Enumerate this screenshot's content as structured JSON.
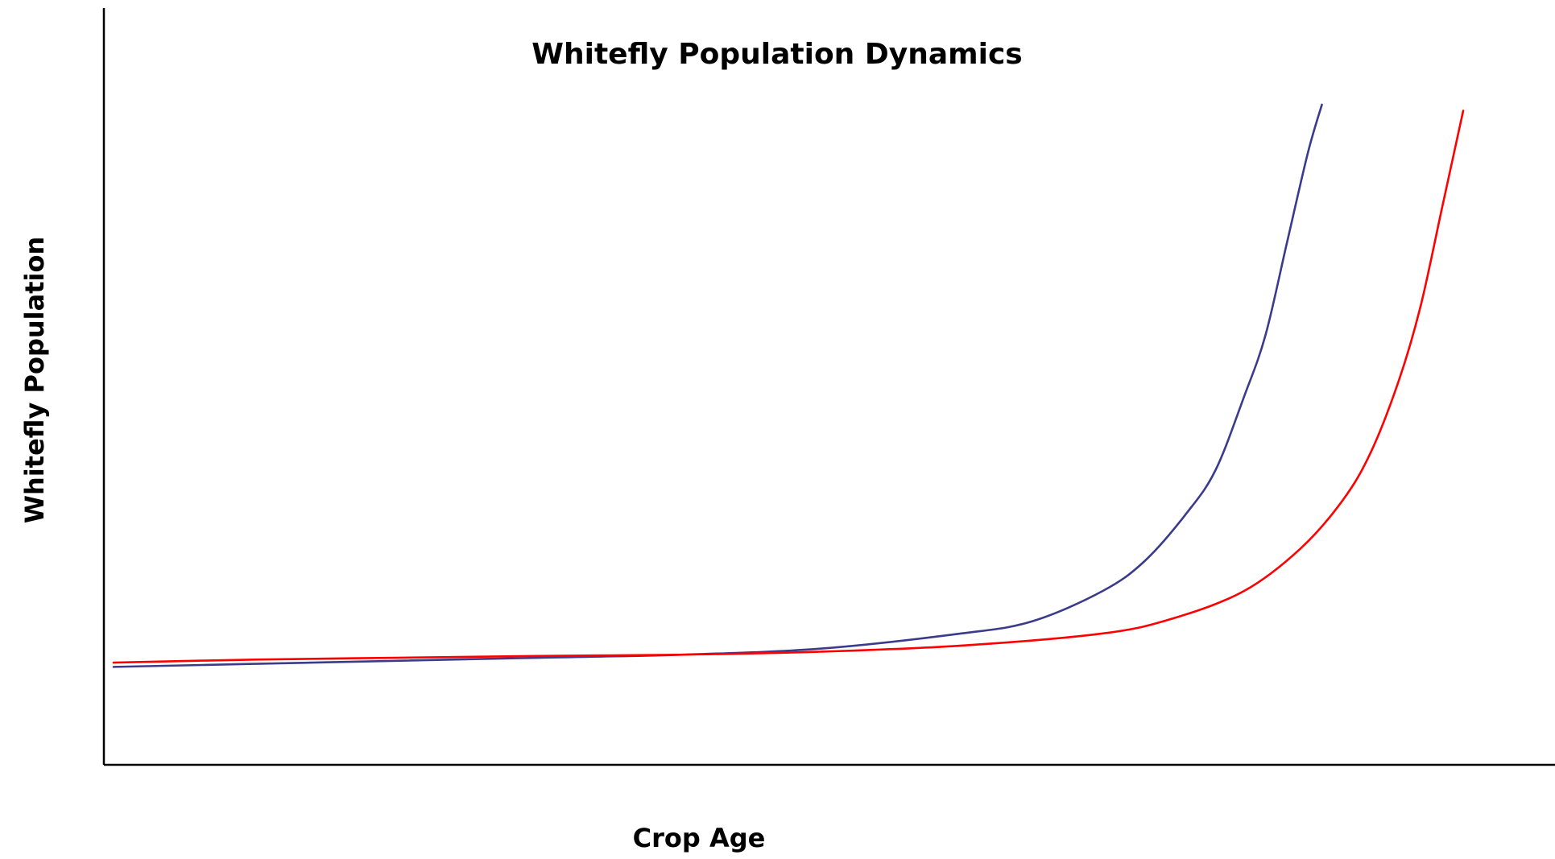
{
  "chart_data": {
    "type": "line",
    "title": "Whitefly Population Dynamics",
    "xlabel": "Crop Age",
    "ylabel": "Whitefly Population",
    "xlim": [
      0,
      100
    ],
    "ylim": [
      0,
      100
    ],
    "grid": false,
    "legend": "none",
    "x_ticks_shown": false,
    "y_ticks_shown": false,
    "series": [
      {
        "color": "#3b3b8c",
        "x": [
          0,
          10,
          20,
          30,
          40,
          50,
          60,
          65,
          70,
          73,
          76,
          78,
          80,
          81.5,
          83,
          84.5,
          85.5
        ],
        "y": [
          7.5,
          8.0,
          8.5,
          9.0,
          9.5,
          10.5,
          13.0,
          15.0,
          20.0,
          25.0,
          33.0,
          40.0,
          52.0,
          62.0,
          77.0,
          92.0,
          100.0
        ]
      },
      {
        "color": "#ff0000",
        "x": [
          0,
          10,
          20,
          30,
          40,
          50,
          60,
          70,
          75,
          80,
          84,
          87,
          89,
          91,
          92.5,
          94,
          95.5
        ],
        "y": [
          8.2,
          8.7,
          9.0,
          9.3,
          9.5,
          10.0,
          11.0,
          13.0,
          15.5,
          20.0,
          27.0,
          35.0,
          43.0,
          55.0,
          67.0,
          83.0,
          99.0
        ]
      }
    ]
  }
}
